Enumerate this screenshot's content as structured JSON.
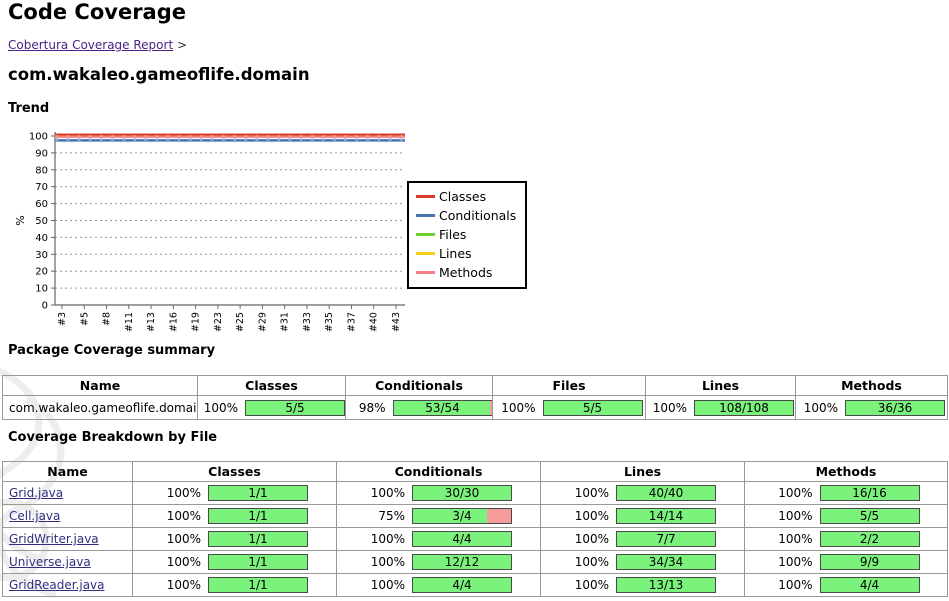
{
  "page_title": "Code Coverage",
  "breadcrumb": {
    "link_label": "Cobertura Coverage Report",
    "separator": ">"
  },
  "package_title": "com.wakaleo.gameoflife.domain",
  "sections": {
    "trend": "Trend",
    "summary": "Package Coverage summary",
    "breakdown": "Coverage Breakdown by File"
  },
  "colors": {
    "bar_green": "#7bf27b",
    "bar_red": "#f59c9c",
    "grid": "#999999",
    "axis": "#666666",
    "link_visited": "#4b2382",
    "file_link": "#30307e"
  },
  "chart_data": {
    "type": "line",
    "title": "",
    "xlabel": "",
    "ylabel": "%",
    "ylim": [
      0,
      100
    ],
    "y_ticks": [
      0,
      10,
      20,
      30,
      40,
      50,
      60,
      70,
      80,
      90,
      100
    ],
    "x_tick_labels": [
      "#3",
      "#5",
      "#8",
      "#11",
      "#13",
      "#16",
      "#19",
      "#23",
      "#25",
      "#29",
      "#31",
      "#33",
      "#35",
      "#37",
      "#40",
      "#43"
    ],
    "n_points": 32,
    "grid": "dashed",
    "legend_position": "right",
    "series": [
      {
        "name": "Classes",
        "value": 100,
        "color": "#dd3a2e",
        "marker_color": "#c9543f"
      },
      {
        "name": "Conditionals",
        "value": 98,
        "color": "#4a72ad",
        "marker_color": "#84a8d6"
      },
      {
        "name": "Files",
        "value": 100,
        "color": "#6fce36",
        "marker_color": "#6fce36"
      },
      {
        "name": "Lines",
        "value": 100,
        "color": "#f6d117",
        "marker_color": "#f6d117"
      },
      {
        "name": "Methods",
        "value": 100,
        "color": "#f28080",
        "marker_color": "#ef9a8f"
      }
    ]
  },
  "summary_table": {
    "headers": [
      "Name",
      "Classes",
      "Conditionals",
      "Files",
      "Lines",
      "Methods"
    ],
    "rows": [
      {
        "name": "com.wakaleo.gameoflife.domain",
        "classes": {
          "pct_label": "100%",
          "pct": 100,
          "fraction": "5/5"
        },
        "conditionals": {
          "pct_label": "98%",
          "pct": 98,
          "fraction": "53/54"
        },
        "files": {
          "pct_label": "100%",
          "pct": 100,
          "fraction": "5/5"
        },
        "lines": {
          "pct_label": "100%",
          "pct": 100,
          "fraction": "108/108"
        },
        "methods": {
          "pct_label": "100%",
          "pct": 100,
          "fraction": "36/36"
        }
      }
    ]
  },
  "breakdown_table": {
    "headers": [
      "Name",
      "Classes",
      "Conditionals",
      "Lines",
      "Methods"
    ],
    "rows": [
      {
        "name": "Grid.java",
        "classes": {
          "pct_label": "100%",
          "pct": 100,
          "fraction": "1/1"
        },
        "conditionals": {
          "pct_label": "100%",
          "pct": 100,
          "fraction": "30/30"
        },
        "lines": {
          "pct_label": "100%",
          "pct": 100,
          "fraction": "40/40"
        },
        "methods": {
          "pct_label": "100%",
          "pct": 100,
          "fraction": "16/16"
        }
      },
      {
        "name": "Cell.java",
        "classes": {
          "pct_label": "100%",
          "pct": 100,
          "fraction": "1/1"
        },
        "conditionals": {
          "pct_label": "75%",
          "pct": 75,
          "fraction": "3/4"
        },
        "lines": {
          "pct_label": "100%",
          "pct": 100,
          "fraction": "14/14"
        },
        "methods": {
          "pct_label": "100%",
          "pct": 100,
          "fraction": "5/5"
        }
      },
      {
        "name": "GridWriter.java",
        "classes": {
          "pct_label": "100%",
          "pct": 100,
          "fraction": "1/1"
        },
        "conditionals": {
          "pct_label": "100%",
          "pct": 100,
          "fraction": "4/4"
        },
        "lines": {
          "pct_label": "100%",
          "pct": 100,
          "fraction": "7/7"
        },
        "methods": {
          "pct_label": "100%",
          "pct": 100,
          "fraction": "2/2"
        }
      },
      {
        "name": "Universe.java",
        "classes": {
          "pct_label": "100%",
          "pct": 100,
          "fraction": "1/1"
        },
        "conditionals": {
          "pct_label": "100%",
          "pct": 100,
          "fraction": "12/12"
        },
        "lines": {
          "pct_label": "100%",
          "pct": 100,
          "fraction": "34/34"
        },
        "methods": {
          "pct_label": "100%",
          "pct": 100,
          "fraction": "9/9"
        }
      },
      {
        "name": "GridReader.java",
        "classes": {
          "pct_label": "100%",
          "pct": 100,
          "fraction": "1/1"
        },
        "conditionals": {
          "pct_label": "100%",
          "pct": 100,
          "fraction": "4/4"
        },
        "lines": {
          "pct_label": "100%",
          "pct": 100,
          "fraction": "13/13"
        },
        "methods": {
          "pct_label": "100%",
          "pct": 100,
          "fraction": "4/4"
        }
      }
    ]
  }
}
